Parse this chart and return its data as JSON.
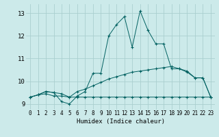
{
  "xlabel": "Humidex (Indice chaleur)",
  "bg_color": "#cceaea",
  "grid_color": "#aacfcf",
  "line_color": "#006060",
  "xlim": [
    -0.5,
    23.5
  ],
  "ylim": [
    8.75,
    13.4
  ],
  "yticks": [
    9,
    10,
    11,
    12,
    13
  ],
  "xticks": [
    0,
    1,
    2,
    3,
    4,
    5,
    6,
    7,
    8,
    9,
    10,
    11,
    12,
    13,
    14,
    15,
    16,
    17,
    18,
    19,
    20,
    21,
    22,
    23
  ],
  "line1_x": [
    0,
    1,
    2,
    3,
    4,
    5,
    6,
    7,
    8,
    9,
    10,
    11,
    12,
    13,
    14,
    15,
    16,
    17,
    18,
    19,
    20,
    21,
    22,
    23
  ],
  "line1_y": [
    9.3,
    9.4,
    9.45,
    9.35,
    9.35,
    9.3,
    9.3,
    9.3,
    9.3,
    9.3,
    9.3,
    9.3,
    9.3,
    9.3,
    9.3,
    9.3,
    9.3,
    9.3,
    9.3,
    9.3,
    9.3,
    9.3,
    9.3,
    9.3
  ],
  "line2_x": [
    0,
    1,
    2,
    3,
    4,
    5,
    6,
    7,
    8,
    9,
    10,
    11,
    12,
    13,
    14,
    15,
    16,
    17,
    18,
    19,
    20,
    21,
    22,
    23
  ],
  "line2_y": [
    9.3,
    9.4,
    9.55,
    9.5,
    9.45,
    9.3,
    9.55,
    9.65,
    9.8,
    9.95,
    10.1,
    10.2,
    10.3,
    10.4,
    10.45,
    10.5,
    10.55,
    10.6,
    10.65,
    10.55,
    10.45,
    10.15,
    10.15,
    9.3
  ],
  "line3_x": [
    0,
    1,
    2,
    3,
    4,
    5,
    6,
    7,
    8,
    9,
    10,
    11,
    12,
    13,
    14,
    15,
    16,
    17,
    18,
    19,
    20,
    21,
    22,
    23
  ],
  "line3_y": [
    9.3,
    9.4,
    9.55,
    9.5,
    9.1,
    9.0,
    9.35,
    9.55,
    10.35,
    10.35,
    12.0,
    12.5,
    12.85,
    11.5,
    13.1,
    12.25,
    11.65,
    11.65,
    10.55,
    10.55,
    10.4,
    10.15,
    10.15,
    9.3
  ]
}
